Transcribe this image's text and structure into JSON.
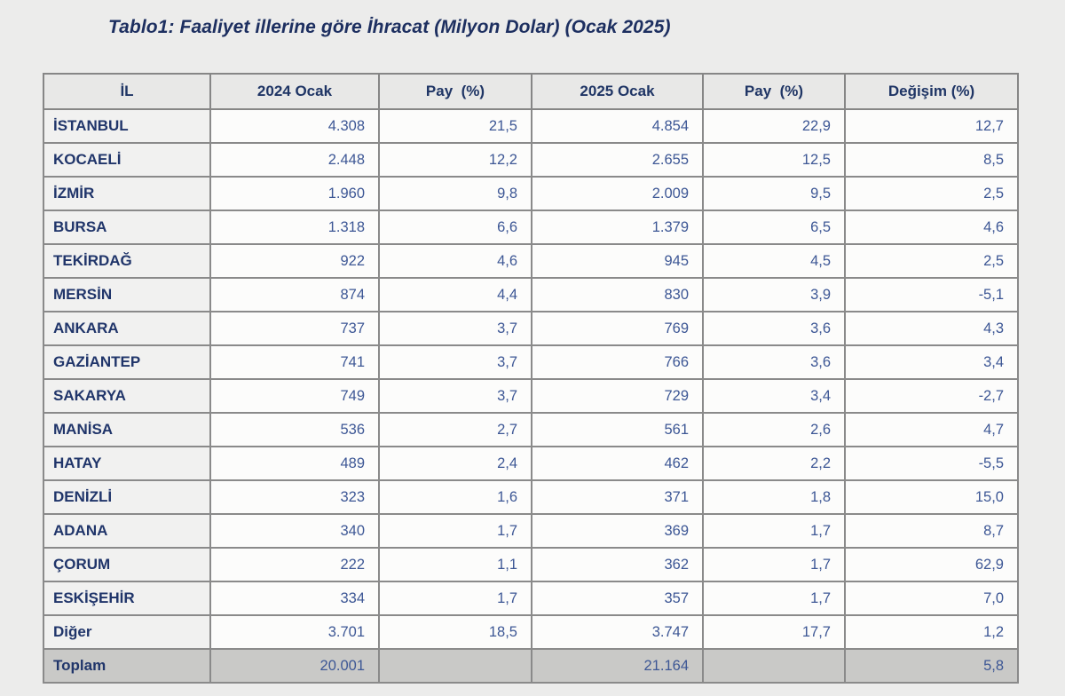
{
  "title": "Tablo1: Faaliyet illerine göre İhracat (Milyon Dolar) (Ocak 2025)",
  "colors": {
    "page_bg": "#ececeb",
    "title_text": "#1d2f60",
    "header_bg": "#e8e8e7",
    "header_text": "#1f3565",
    "label_cell_bg": "#f1f1f0",
    "value_cell_bg": "#fcfcfb",
    "value_text": "#3d5795",
    "total_row_bg": "#c9c9c7",
    "border": "#8a8a8a"
  },
  "table": {
    "headers": [
      "İL",
      "2024 Ocak",
      "Pay  (%)",
      "2025 Ocak",
      "Pay  (%)",
      "Değişim (%)"
    ],
    "rows": [
      {
        "label": "İSTANBUL",
        "values": [
          "4.308",
          "21,5",
          "4.854",
          "22,9",
          "12,7"
        ],
        "total": false
      },
      {
        "label": "KOCAELİ",
        "values": [
          "2.448",
          "12,2",
          "2.655",
          "12,5",
          "8,5"
        ],
        "total": false
      },
      {
        "label": "İZMİR",
        "values": [
          "1.960",
          "9,8",
          "2.009",
          "9,5",
          "2,5"
        ],
        "total": false
      },
      {
        "label": "BURSA",
        "values": [
          "1.318",
          "6,6",
          "1.379",
          "6,5",
          "4,6"
        ],
        "total": false
      },
      {
        "label": "TEKİRDAĞ",
        "values": [
          "922",
          "4,6",
          "945",
          "4,5",
          "2,5"
        ],
        "total": false
      },
      {
        "label": "MERSİN",
        "values": [
          "874",
          "4,4",
          "830",
          "3,9",
          "-5,1"
        ],
        "total": false
      },
      {
        "label": "ANKARA",
        "values": [
          "737",
          "3,7",
          "769",
          "3,6",
          "4,3"
        ],
        "total": false
      },
      {
        "label": "GAZİANTEP",
        "values": [
          "741",
          "3,7",
          "766",
          "3,6",
          "3,4"
        ],
        "total": false
      },
      {
        "label": "SAKARYA",
        "values": [
          "749",
          "3,7",
          "729",
          "3,4",
          "-2,7"
        ],
        "total": false
      },
      {
        "label": "MANİSA",
        "values": [
          "536",
          "2,7",
          "561",
          "2,6",
          "4,7"
        ],
        "total": false
      },
      {
        "label": "HATAY",
        "values": [
          "489",
          "2,4",
          "462",
          "2,2",
          "-5,5"
        ],
        "total": false
      },
      {
        "label": "DENİZLİ",
        "values": [
          "323",
          "1,6",
          "371",
          "1,8",
          "15,0"
        ],
        "total": false
      },
      {
        "label": "ADANA",
        "values": [
          "340",
          "1,7",
          "369",
          "1,7",
          "8,7"
        ],
        "total": false
      },
      {
        "label": "ÇORUM",
        "values": [
          "222",
          "1,1",
          "362",
          "1,7",
          "62,9"
        ],
        "total": false
      },
      {
        "label": "ESKİŞEHİR",
        "values": [
          "334",
          "1,7",
          "357",
          "1,7",
          "7,0"
        ],
        "total": false
      },
      {
        "label": "Diğer",
        "values": [
          "3.701",
          "18,5",
          "3.747",
          "17,7",
          "1,2"
        ],
        "total": false
      },
      {
        "label": "Toplam",
        "values": [
          "20.001",
          "",
          "21.164",
          "",
          "5,8"
        ],
        "total": true
      }
    ]
  }
}
